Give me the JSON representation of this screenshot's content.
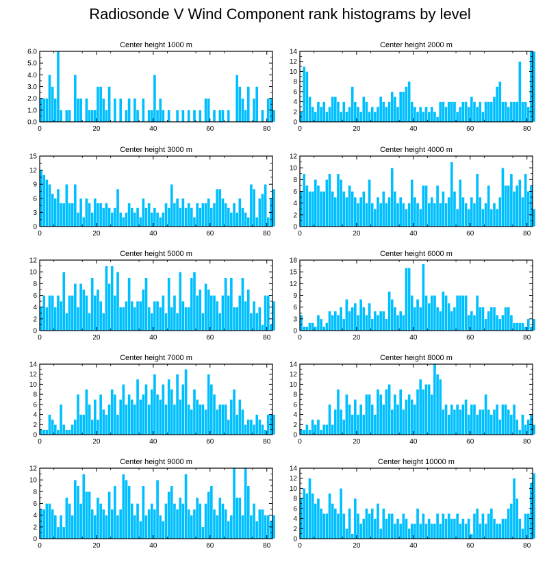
{
  "title": "Radiosonde V Wind Component rank histograms by level",
  "chart_data": [
    {
      "type": "bar",
      "title": "Center height 1000 m",
      "xlim": [
        0,
        82
      ],
      "ylim": [
        0,
        6
      ],
      "yticks": [
        {
          "v": 0,
          "label": "0.0"
        },
        {
          "v": 1,
          "label": "1.0"
        },
        {
          "v": 2,
          "label": "2.0"
        },
        {
          "v": 3,
          "label": "3.0"
        },
        {
          "v": 4,
          "label": "4.0"
        },
        {
          "v": 5,
          "label": "5.0"
        },
        {
          "v": 6,
          "label": "6.0"
        }
      ],
      "xticks": [
        {
          "v": 0,
          "label": "0"
        },
        {
          "v": 20,
          "label": "20"
        },
        {
          "v": 40,
          "label": "40"
        },
        {
          "v": 60,
          "label": "60"
        },
        {
          "v": 80,
          "label": "80"
        }
      ],
      "values": [
        2,
        2,
        2,
        4,
        3,
        2,
        6,
        1,
        0,
        1,
        1,
        0,
        4,
        2,
        2,
        0,
        2,
        1,
        1,
        1,
        3,
        3,
        2,
        1,
        3,
        0,
        2,
        0,
        2,
        0,
        1,
        2,
        0,
        2,
        1,
        0,
        2,
        0,
        1,
        1,
        4,
        1,
        2,
        1,
        0,
        1,
        0,
        0,
        1,
        0,
        1,
        0,
        1,
        0,
        1,
        0,
        1,
        0,
        2,
        2,
        0,
        1,
        0,
        1,
        1,
        0,
        1,
        0,
        0,
        4,
        3,
        2,
        1,
        3,
        0,
        2,
        3,
        0,
        1,
        0,
        2,
        2,
        1
      ]
    },
    {
      "type": "bar",
      "title": "Center height 2000 m",
      "xlim": [
        0,
        82
      ],
      "ylim": [
        0,
        14
      ],
      "yticks": [
        {
          "v": 0,
          "label": "0"
        },
        {
          "v": 2,
          "label": "2"
        },
        {
          "v": 4,
          "label": "4"
        },
        {
          "v": 6,
          "label": "6"
        },
        {
          "v": 8,
          "label": "8"
        },
        {
          "v": 10,
          "label": "10"
        },
        {
          "v": 12,
          "label": "12"
        },
        {
          "v": 14,
          "label": "14"
        }
      ],
      "xticks": [
        {
          "v": 0,
          "label": "0"
        },
        {
          "v": 20,
          "label": "20"
        },
        {
          "v": 40,
          "label": "40"
        },
        {
          "v": 60,
          "label": "60"
        },
        {
          "v": 80,
          "label": "80"
        }
      ],
      "values": [
        2,
        11,
        10,
        5,
        3,
        2,
        4,
        3,
        4,
        2,
        3,
        5,
        5,
        4,
        2,
        4,
        2,
        3,
        7,
        4,
        3,
        2,
        5,
        4,
        2,
        3,
        2,
        3,
        5,
        4,
        3,
        4,
        6,
        5,
        3,
        6,
        6,
        7,
        8,
        4,
        3,
        2,
        3,
        2,
        3,
        2,
        3,
        2,
        1,
        4,
        4,
        3,
        4,
        4,
        4,
        2,
        3,
        4,
        4,
        3,
        5,
        4,
        3,
        4,
        2,
        4,
        4,
        4,
        5,
        7,
        8,
        4,
        4,
        3,
        4,
        4,
        4,
        12,
        4,
        4,
        3,
        14,
        14
      ]
    },
    {
      "type": "bar",
      "title": "Center height 3000 m",
      "xlim": [
        0,
        82
      ],
      "ylim": [
        0,
        15
      ],
      "yticks": [
        {
          "v": 0,
          "label": "0"
        },
        {
          "v": 3,
          "label": "3"
        },
        {
          "v": 6,
          "label": "6"
        },
        {
          "v": 9,
          "label": "9"
        },
        {
          "v": 12,
          "label": "12"
        },
        {
          "v": 15,
          "label": "15"
        }
      ],
      "xticks": [
        {
          "v": 0,
          "label": "0"
        },
        {
          "v": 20,
          "label": "20"
        },
        {
          "v": 40,
          "label": "40"
        },
        {
          "v": 60,
          "label": "60"
        },
        {
          "v": 80,
          "label": "80"
        }
      ],
      "values": [
        12,
        11,
        10,
        9,
        7,
        6,
        8,
        5,
        5,
        9,
        5,
        5,
        9,
        3,
        6,
        2,
        6,
        5,
        3,
        6,
        5,
        5,
        4,
        5,
        4,
        3,
        4,
        8,
        3,
        2,
        3,
        5,
        4,
        3,
        4,
        2,
        6,
        4,
        5,
        3,
        4,
        3,
        2,
        3,
        5,
        4,
        9,
        5,
        6,
        4,
        6,
        4,
        5,
        4,
        2,
        5,
        4,
        5,
        5,
        6,
        4,
        5,
        8,
        8,
        6,
        5,
        4,
        3,
        5,
        3,
        6,
        4,
        3,
        2,
        9,
        8,
        2,
        6,
        7,
        9,
        2,
        6,
        8
      ]
    },
    {
      "type": "bar",
      "title": "Center height 4000 m",
      "xlim": [
        0,
        82
      ],
      "ylim": [
        0,
        12
      ],
      "yticks": [
        {
          "v": 0,
          "label": "0"
        },
        {
          "v": 2,
          "label": "2"
        },
        {
          "v": 4,
          "label": "4"
        },
        {
          "v": 6,
          "label": "6"
        },
        {
          "v": 8,
          "label": "8"
        },
        {
          "v": 10,
          "label": "10"
        },
        {
          "v": 12,
          "label": "12"
        }
      ],
      "xticks": [
        {
          "v": 0,
          "label": "0"
        },
        {
          "v": 20,
          "label": "20"
        },
        {
          "v": 40,
          "label": "40"
        },
        {
          "v": 60,
          "label": "60"
        },
        {
          "v": 80,
          "label": "80"
        }
      ],
      "values": [
        6,
        9,
        7,
        6,
        6,
        8,
        7,
        6,
        6,
        8,
        9,
        6,
        5,
        9,
        8,
        6,
        5,
        7,
        6,
        5,
        4,
        5,
        6,
        4,
        8,
        4,
        3,
        5,
        4,
        6,
        4,
        5,
        10,
        6,
        4,
        5,
        4,
        3,
        4,
        8,
        5,
        4,
        3,
        7,
        7,
        4,
        5,
        4,
        7,
        4,
        6,
        4,
        5,
        11,
        6,
        3,
        8,
        5,
        4,
        3,
        5,
        4,
        9,
        5,
        3,
        4,
        7,
        3,
        4,
        3,
        5,
        10,
        7,
        7,
        9,
        6,
        7,
        8,
        5,
        9,
        6,
        7,
        3
      ]
    },
    {
      "type": "bar",
      "title": "Center height 5000 m",
      "xlim": [
        0,
        82
      ],
      "ylim": [
        0,
        12
      ],
      "yticks": [
        {
          "v": 0,
          "label": "0"
        },
        {
          "v": 2,
          "label": "2"
        },
        {
          "v": 4,
          "label": "4"
        },
        {
          "v": 6,
          "label": "6"
        },
        {
          "v": 8,
          "label": "8"
        },
        {
          "v": 10,
          "label": "10"
        },
        {
          "v": 12,
          "label": "12"
        }
      ],
      "xticks": [
        {
          "v": 0,
          "label": "0"
        },
        {
          "v": 20,
          "label": "20"
        },
        {
          "v": 40,
          "label": "40"
        },
        {
          "v": 60,
          "label": "60"
        },
        {
          "v": 80,
          "label": "80"
        }
      ],
      "values": [
        4,
        6,
        4,
        6,
        6,
        4,
        6,
        5,
        10,
        3,
        6,
        6,
        8,
        4,
        8,
        7,
        6,
        3,
        9,
        6,
        7,
        5,
        3,
        11,
        8,
        11,
        6,
        10,
        4,
        4,
        5,
        9,
        5,
        4,
        5,
        5,
        7,
        9,
        4,
        3,
        5,
        5,
        4,
        6,
        3,
        9,
        4,
        6,
        3,
        10,
        5,
        4,
        4,
        9,
        10,
        6,
        7,
        3,
        8,
        7,
        6,
        6,
        5,
        3,
        6,
        9,
        6,
        9,
        4,
        4,
        6,
        9,
        5,
        7,
        3,
        5,
        3,
        4,
        1,
        6,
        6,
        1,
        5
      ]
    },
    {
      "type": "bar",
      "title": "Center height 6000 m",
      "xlim": [
        0,
        82
      ],
      "ylim": [
        0,
        18
      ],
      "yticks": [
        {
          "v": 0,
          "label": "0"
        },
        {
          "v": 3,
          "label": "3"
        },
        {
          "v": 6,
          "label": "6"
        },
        {
          "v": 9,
          "label": "9"
        },
        {
          "v": 12,
          "label": "12"
        },
        {
          "v": 15,
          "label": "15"
        },
        {
          "v": 18,
          "label": "18"
        }
      ],
      "xticks": [
        {
          "v": 0,
          "label": "0"
        },
        {
          "v": 20,
          "label": "20"
        },
        {
          "v": 40,
          "label": "40"
        },
        {
          "v": 60,
          "label": "60"
        },
        {
          "v": 80,
          "label": "80"
        }
      ],
      "values": [
        4,
        1,
        1,
        2,
        2,
        1,
        4,
        3,
        1,
        2,
        5,
        4,
        5,
        4,
        6,
        3,
        8,
        5,
        6,
        7,
        4,
        8,
        6,
        4,
        7,
        3,
        5,
        4,
        5,
        5,
        3,
        10,
        8,
        6,
        4,
        5,
        4,
        16,
        16,
        9,
        6,
        8,
        6,
        17,
        9,
        7,
        9,
        9,
        6,
        5,
        10,
        9,
        7,
        5,
        6,
        9,
        9,
        9,
        9,
        4,
        5,
        4,
        9,
        6,
        6,
        3,
        5,
        6,
        6,
        4,
        3,
        4,
        6,
        6,
        4,
        2,
        2,
        2,
        2,
        1,
        3,
        1,
        3
      ]
    },
    {
      "type": "bar",
      "title": "Center height 7000 m",
      "xlim": [
        0,
        82
      ],
      "ylim": [
        0,
        14
      ],
      "yticks": [
        {
          "v": 0,
          "label": "0"
        },
        {
          "v": 2,
          "label": "2"
        },
        {
          "v": 4,
          "label": "4"
        },
        {
          "v": 6,
          "label": "6"
        },
        {
          "v": 8,
          "label": "8"
        },
        {
          "v": 10,
          "label": "10"
        },
        {
          "v": 12,
          "label": "12"
        },
        {
          "v": 14,
          "label": "14"
        }
      ],
      "xticks": [
        {
          "v": 0,
          "label": "0"
        },
        {
          "v": 20,
          "label": "20"
        },
        {
          "v": 40,
          "label": "40"
        },
        {
          "v": 60,
          "label": "60"
        },
        {
          "v": 80,
          "label": "80"
        }
      ],
      "values": [
        1,
        1,
        1,
        4,
        3,
        2,
        1,
        6,
        2,
        1,
        1,
        2,
        3,
        8,
        4,
        4,
        9,
        6,
        3,
        7,
        3,
        8,
        5,
        4,
        6,
        9,
        8,
        4,
        7,
        10,
        6,
        8,
        7,
        6,
        11,
        7,
        8,
        10,
        6,
        9,
        12,
        8,
        7,
        10,
        6,
        11,
        9,
        6,
        12,
        7,
        10,
        13,
        6,
        5,
        9,
        7,
        6,
        6,
        5,
        12,
        10,
        8,
        5,
        6,
        6,
        6,
        3,
        7,
        9,
        4,
        7,
        5,
        2,
        3,
        3,
        2,
        4,
        3,
        2,
        1,
        4,
        4,
        4
      ]
    },
    {
      "type": "bar",
      "title": "Center height 8000 m",
      "xlim": [
        0,
        82
      ],
      "ylim": [
        0,
        14
      ],
      "yticks": [
        {
          "v": 0,
          "label": "0"
        },
        {
          "v": 2,
          "label": "2"
        },
        {
          "v": 4,
          "label": "4"
        },
        {
          "v": 6,
          "label": "6"
        },
        {
          "v": 8,
          "label": "8"
        },
        {
          "v": 10,
          "label": "10"
        },
        {
          "v": 12,
          "label": "12"
        },
        {
          "v": 14,
          "label": "14"
        }
      ],
      "xticks": [
        {
          "v": 0,
          "label": "0"
        },
        {
          "v": 20,
          "label": "20"
        },
        {
          "v": 40,
          "label": "40"
        },
        {
          "v": 60,
          "label": "60"
        },
        {
          "v": 80,
          "label": "80"
        }
      ],
      "values": [
        1,
        1,
        2,
        1,
        3,
        2,
        3,
        1,
        2,
        2,
        6,
        2,
        5,
        9,
        5,
        3,
        8,
        6,
        4,
        7,
        4,
        6,
        4,
        8,
        8,
        6,
        4,
        9,
        8,
        6,
        9,
        10,
        5,
        8,
        6,
        9,
        5,
        7,
        8,
        7,
        6,
        9,
        11,
        9,
        10,
        10,
        8,
        14,
        12,
        11,
        5,
        6,
        4,
        6,
        5,
        6,
        5,
        6,
        7,
        4,
        6,
        6,
        4,
        5,
        5,
        8,
        5,
        4,
        5,
        6,
        3,
        6,
        6,
        5,
        4,
        6,
        3,
        1,
        4,
        2,
        3,
        4,
        2
      ]
    },
    {
      "type": "bar",
      "title": "Center height 9000 m",
      "xlim": [
        0,
        82
      ],
      "ylim": [
        0,
        12
      ],
      "yticks": [
        {
          "v": 0,
          "label": "0"
        },
        {
          "v": 2,
          "label": "2"
        },
        {
          "v": 4,
          "label": "4"
        },
        {
          "v": 6,
          "label": "6"
        },
        {
          "v": 8,
          "label": "8"
        },
        {
          "v": 10,
          "label": "10"
        },
        {
          "v": 12,
          "label": "12"
        }
      ],
      "xticks": [
        {
          "v": 0,
          "label": "0"
        },
        {
          "v": 20,
          "label": "20"
        },
        {
          "v": 40,
          "label": "40"
        },
        {
          "v": 60,
          "label": "60"
        },
        {
          "v": 80,
          "label": "80"
        }
      ],
      "values": [
        5,
        5,
        6,
        6,
        5,
        4,
        2,
        4,
        2,
        7,
        6,
        4,
        10,
        9,
        6,
        11,
        8,
        8,
        5,
        4,
        7,
        6,
        5,
        4,
        8,
        5,
        9,
        4,
        5,
        11,
        10,
        9,
        6,
        4,
        6,
        3,
        9,
        4,
        5,
        6,
        5,
        10,
        4,
        3,
        6,
        8,
        9,
        6,
        5,
        7,
        6,
        11,
        5,
        4,
        5,
        7,
        6,
        2,
        6,
        8,
        9,
        5,
        4,
        7,
        6,
        5,
        3,
        4,
        12,
        7,
        7,
        4,
        12,
        9,
        4,
        6,
        3,
        5,
        5,
        4,
        4,
        3,
        4
      ]
    },
    {
      "type": "bar",
      "title": "Center height 10000 m",
      "xlim": [
        0,
        82
      ],
      "ylim": [
        0,
        14
      ],
      "yticks": [
        {
          "v": 0,
          "label": "0"
        },
        {
          "v": 2,
          "label": "2"
        },
        {
          "v": 4,
          "label": "4"
        },
        {
          "v": 6,
          "label": "6"
        },
        {
          "v": 8,
          "label": "8"
        },
        {
          "v": 10,
          "label": "10"
        },
        {
          "v": 12,
          "label": "12"
        },
        {
          "v": 14,
          "label": "14"
        }
      ],
      "xticks": [
        {
          "v": 0,
          "label": "0"
        },
        {
          "v": 20,
          "label": "20"
        },
        {
          "v": 40,
          "label": "40"
        },
        {
          "v": 60,
          "label": "60"
        },
        {
          "v": 80,
          "label": "80"
        }
      ],
      "values": [
        8,
        10,
        9,
        12,
        9,
        7,
        8,
        6,
        5,
        5,
        9,
        7,
        6,
        5,
        10,
        5,
        2,
        6,
        1,
        8,
        5,
        3,
        4,
        6,
        5,
        6,
        4,
        7,
        2,
        6,
        4,
        5,
        5,
        3,
        4,
        3,
        5,
        4,
        2,
        3,
        3,
        6,
        3,
        5,
        3,
        4,
        3,
        3,
        5,
        3,
        5,
        4,
        5,
        4,
        4,
        5,
        3,
        4,
        3,
        4,
        1,
        5,
        6,
        3,
        5,
        3,
        5,
        6,
        4,
        3,
        3,
        4,
        4,
        6,
        7,
        12,
        8,
        4,
        2,
        5,
        5,
        11,
        13
      ]
    }
  ]
}
